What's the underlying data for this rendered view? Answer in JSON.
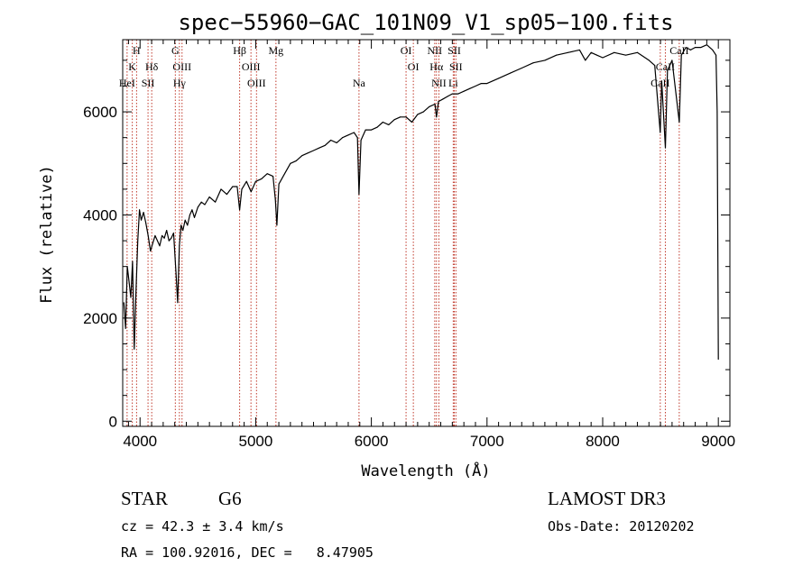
{
  "chart_data": {
    "type": "line",
    "title": "spec−55960−GAC_101N09_V1_sp05−100.fits",
    "xlabel": "Wavelength (Å)",
    "ylabel": "Flux (relative)",
    "xlim": [
      3850,
      9100
    ],
    "ylim": [
      -100,
      7400
    ],
    "x_ticks": [
      4000,
      5000,
      6000,
      7000,
      8000,
      9000
    ],
    "y_ticks": [
      0,
      2000,
      4000,
      6000
    ],
    "x_tick_labels": [
      "4000",
      "5000",
      "6000",
      "7000",
      "8000",
      "9000"
    ],
    "y_tick_labels": [
      "0",
      "2000",
      "4000",
      "6000"
    ],
    "grid": false,
    "line_color": "#000000",
    "marker_color": "#c0392b",
    "spectrum": {
      "x": [
        3860,
        3875,
        3890,
        3905,
        3920,
        3935,
        3950,
        3965,
        3980,
        3995,
        4010,
        4030,
        4050,
        4070,
        4090,
        4110,
        4130,
        4150,
        4170,
        4190,
        4210,
        4230,
        4250,
        4270,
        4290,
        4310,
        4325,
        4340,
        4355,
        4370,
        4390,
        4410,
        4430,
        4450,
        4470,
        4500,
        4530,
        4560,
        4600,
        4650,
        4700,
        4750,
        4800,
        4840,
        4861,
        4880,
        4920,
        4960,
        5000,
        5050,
        5100,
        5150,
        5170,
        5183,
        5200,
        5250,
        5300,
        5350,
        5400,
        5450,
        5500,
        5550,
        5600,
        5650,
        5700,
        5750,
        5800,
        5850,
        5880,
        5893,
        5910,
        5950,
        6000,
        6050,
        6100,
        6150,
        6200,
        6250,
        6300,
        6350,
        6400,
        6450,
        6500,
        6550,
        6563,
        6580,
        6620,
        6660,
        6700,
        6750,
        6800,
        6850,
        6900,
        6950,
        7000,
        7100,
        7200,
        7300,
        7400,
        7500,
        7600,
        7700,
        7800,
        7850,
        7900,
        7950,
        8000,
        8100,
        8200,
        8300,
        8400,
        8450,
        8498,
        8510,
        8542,
        8560,
        8600,
        8662,
        8680,
        8720,
        8760,
        8800,
        8850,
        8900,
        8950,
        8980,
        8990,
        9000
      ],
      "y": [
        2300,
        1800,
        3000,
        2700,
        2400,
        3100,
        1400,
        2500,
        3500,
        4100,
        3900,
        4050,
        3850,
        3600,
        3300,
        3450,
        3600,
        3500,
        3400,
        3600,
        3550,
        3700,
        3500,
        3550,
        3650,
        2900,
        2300,
        3400,
        3800,
        3700,
        3900,
        3800,
        4000,
        4100,
        3950,
        4150,
        4250,
        4200,
        4350,
        4250,
        4500,
        4400,
        4550,
        4550,
        4100,
        4500,
        4650,
        4450,
        4650,
        4700,
        4800,
        4750,
        4300,
        3800,
        4600,
        4800,
        5000,
        5050,
        5150,
        5200,
        5250,
        5300,
        5350,
        5450,
        5400,
        5500,
        5550,
        5600,
        5500,
        4400,
        5450,
        5650,
        5650,
        5700,
        5800,
        5750,
        5850,
        5900,
        5900,
        5800,
        5950,
        6000,
        6100,
        6150,
        5900,
        6200,
        6250,
        6300,
        6350,
        6350,
        6400,
        6450,
        6500,
        6550,
        6550,
        6650,
        6750,
        6850,
        6950,
        7000,
        7100,
        7150,
        7200,
        7000,
        7150,
        7100,
        7050,
        7150,
        7100,
        7150,
        7000,
        6900,
        5600,
        6600,
        5300,
        6800,
        7000,
        5800,
        7100,
        7250,
        7200,
        7250,
        7250,
        7300,
        7200,
        7100,
        6000,
        1200
      ]
    },
    "line_markers": [
      {
        "label": "H",
        "x": 3970,
        "row": 0
      },
      {
        "label": "K",
        "x": 3933,
        "row": 1
      },
      {
        "label": "Hδ",
        "x": 4101,
        "row": 1
      },
      {
        "label": "HeI",
        "x": 3888,
        "row": 2
      },
      {
        "label": "SII",
        "x": 4069,
        "row": 2
      },
      {
        "label": "G",
        "x": 4305,
        "row": 0
      },
      {
        "label": "OIII",
        "x": 4363,
        "row": 1
      },
      {
        "label": "Hγ",
        "x": 4340,
        "row": 2
      },
      {
        "label": "Hβ",
        "x": 4861,
        "row": 0
      },
      {
        "label": "OIII",
        "x": 4959,
        "row": 1
      },
      {
        "label": "OIII",
        "x": 5007,
        "row": 2
      },
      {
        "label": "Mg",
        "x": 5175,
        "row": 0
      },
      {
        "label": "Na",
        "x": 5893,
        "row": 2
      },
      {
        "label": "OI",
        "x": 6300,
        "row": 0
      },
      {
        "label": "OI",
        "x": 6363,
        "row": 1
      },
      {
        "label": "NII",
        "x": 6548,
        "row": 0
      },
      {
        "label": "SII",
        "x": 6717,
        "row": 0
      },
      {
        "label": "Hα",
        "x": 6563,
        "row": 1
      },
      {
        "label": "SII",
        "x": 6731,
        "row": 1
      },
      {
        "label": "NII",
        "x": 6584,
        "row": 2
      },
      {
        "label": "Li",
        "x": 6708,
        "row": 2
      },
      {
        "label": "CaII",
        "x": 8662,
        "row": 0
      },
      {
        "label": "CaII",
        "x": 8542,
        "row": 1
      },
      {
        "label": "CaII",
        "x": 8498,
        "row": 2
      }
    ]
  },
  "info": {
    "object_class": "STAR",
    "subclass": "G6",
    "redshift_line": "cz = 42.3 ± 3.4 km/s",
    "coords_line": "RA = 100.92016, DEC =   8.47905",
    "survey": "LAMOST DR3",
    "obs_date": "Obs-Date: 20120202"
  }
}
